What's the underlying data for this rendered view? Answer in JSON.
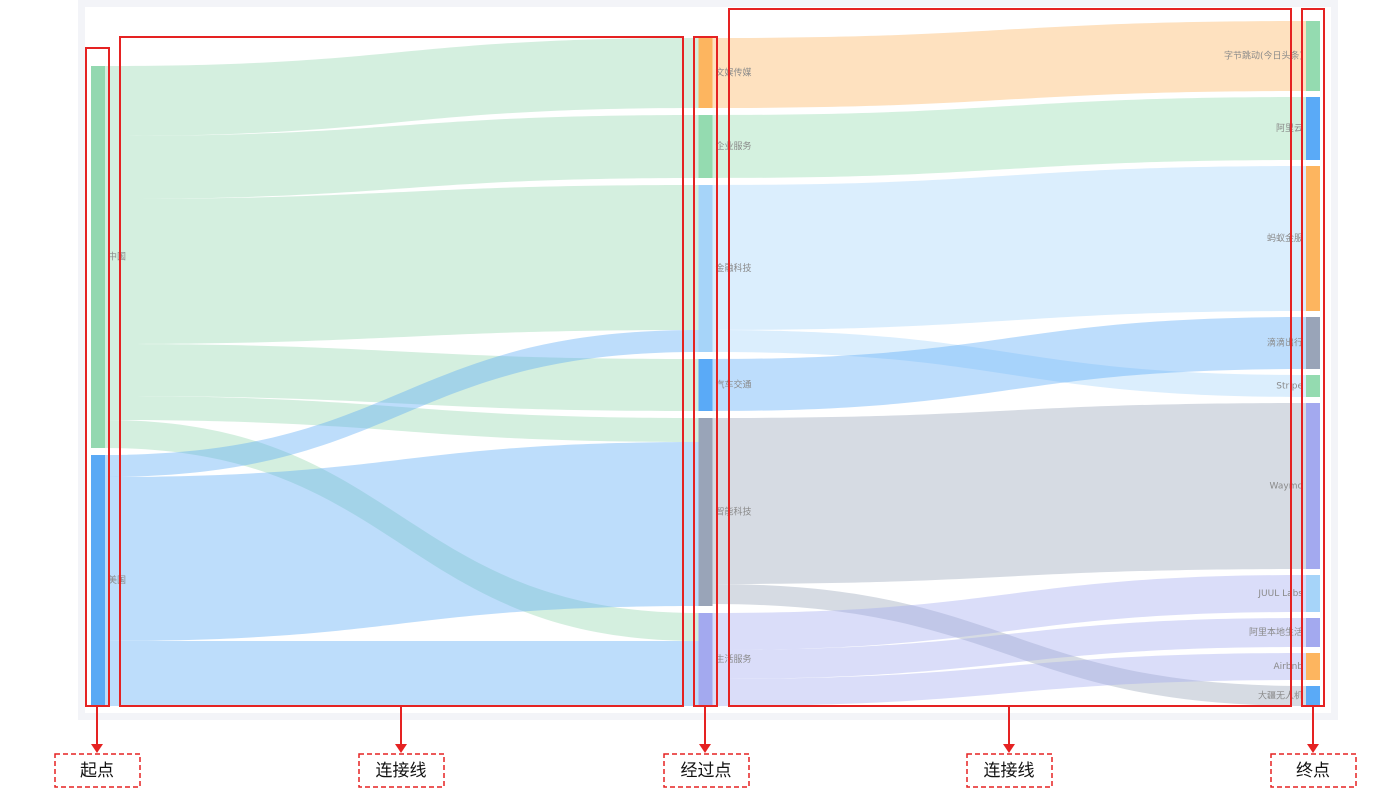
{
  "chart_data": {
    "type": "sankey",
    "nodes": [
      {
        "name": "中国",
        "color": "#93d8b0"
      },
      {
        "name": "美国",
        "color": "#5aa9f5"
      },
      {
        "name": "文娱传媒",
        "color": "#fdb55f"
      },
      {
        "name": "企业服务",
        "color": "#94dbb0"
      },
      {
        "name": "金融科技",
        "color": "#a6d4f9"
      },
      {
        "name": "汽车交通",
        "color": "#5aaaf7"
      },
      {
        "name": "智能科技",
        "color": "#99a4b8"
      },
      {
        "name": "生活服务",
        "color": "#a3a9ef"
      },
      {
        "name": "字节跳动(今日头条)",
        "color": "#94dbb0"
      },
      {
        "name": "阿里云",
        "color": "#5aaaf7"
      },
      {
        "name": "蚂蚁金服",
        "color": "#fdb55f"
      },
      {
        "name": "滴滴出行",
        "color": "#99a4b8"
      },
      {
        "name": "Stripe",
        "color": "#94dbb0"
      },
      {
        "name": "Waymo",
        "color": "#a3a9ef"
      },
      {
        "name": "JUUL Labs",
        "color": "#a6d4f9"
      },
      {
        "name": "阿里本地生活",
        "color": "#a3a9ef"
      },
      {
        "name": "Airbnb",
        "color": "#fdb55f"
      },
      {
        "name": "大疆无人机",
        "color": "#5aaaf7"
      }
    ],
    "links": [
      {
        "source": "中国",
        "target": "文娱传媒",
        "value": 70
      },
      {
        "source": "中国",
        "target": "企业服务",
        "value": 63
      },
      {
        "source": "中国",
        "target": "金融科技",
        "value": 145
      },
      {
        "source": "中国",
        "target": "汽车交通",
        "value": 52
      },
      {
        "source": "中国",
        "target": "智能科技",
        "value": 24
      },
      {
        "source": "中国",
        "target": "生活服务",
        "value": 28
      },
      {
        "source": "美国",
        "target": "金融科技",
        "value": 22
      },
      {
        "source": "美国",
        "target": "智能科技",
        "value": 164
      },
      {
        "source": "美国",
        "target": "生活服务",
        "value": 65
      },
      {
        "source": "文娱传媒",
        "target": "字节跳动(今日头条)",
        "value": 70
      },
      {
        "source": "企业服务",
        "target": "阿里云",
        "value": 63
      },
      {
        "source": "金融科技",
        "target": "蚂蚁金服",
        "value": 145
      },
      {
        "source": "金融科技",
        "target": "Stripe",
        "value": 22
      },
      {
        "source": "汽车交通",
        "target": "滴滴出行",
        "value": 52
      },
      {
        "source": "智能科技",
        "target": "Waymo",
        "value": 166
      },
      {
        "source": "智能科技",
        "target": "大疆无人机",
        "value": 20
      },
      {
        "source": "生活服务",
        "target": "JUUL Labs",
        "value": 37
      },
      {
        "source": "生活服务",
        "target": "阿里本地生活",
        "value": 29
      },
      {
        "source": "生活服务",
        "target": "Airbnb",
        "value": 27
      }
    ],
    "annotations": [
      "起点",
      "连接线",
      "经过点",
      "连接线",
      "终点"
    ]
  }
}
